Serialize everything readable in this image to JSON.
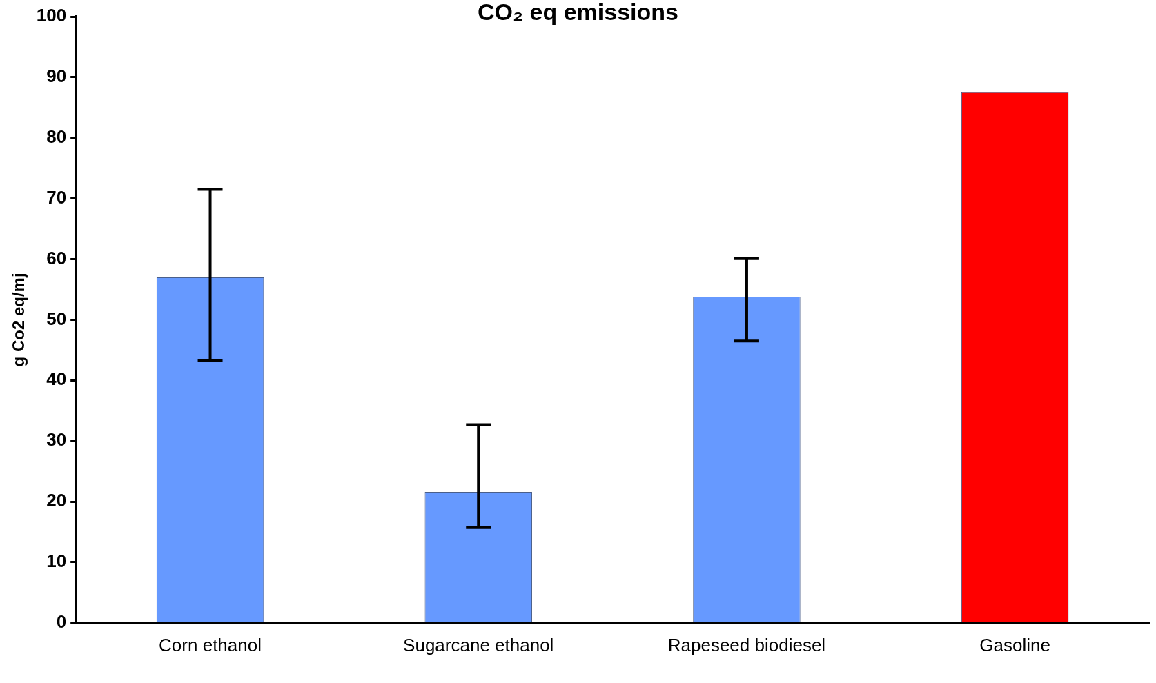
{
  "chart_data": {
    "type": "bar",
    "title": "CO₂ eq  emissions",
    "ylabel": "g Co2 eq/mj",
    "categories": [
      "Corn ethanol",
      "Sugarcane ethanol",
      "Rapeseed biodiesel",
      "Gasoline"
    ],
    "values": [
      57,
      21.6,
      53.8,
      87.5
    ],
    "colors": [
      "#6699ff",
      "#6699ff",
      "#6699ff",
      "#ff0000"
    ],
    "errors": [
      [
        43.3,
        71.5
      ],
      [
        15.7,
        32.7
      ],
      [
        46.5,
        60.1
      ],
      null
    ],
    "ylim": [
      0,
      100
    ],
    "yticks": [
      0,
      10,
      20,
      30,
      40,
      50,
      60,
      70,
      80,
      90,
      100
    ],
    "grid": false,
    "legend": false
  }
}
